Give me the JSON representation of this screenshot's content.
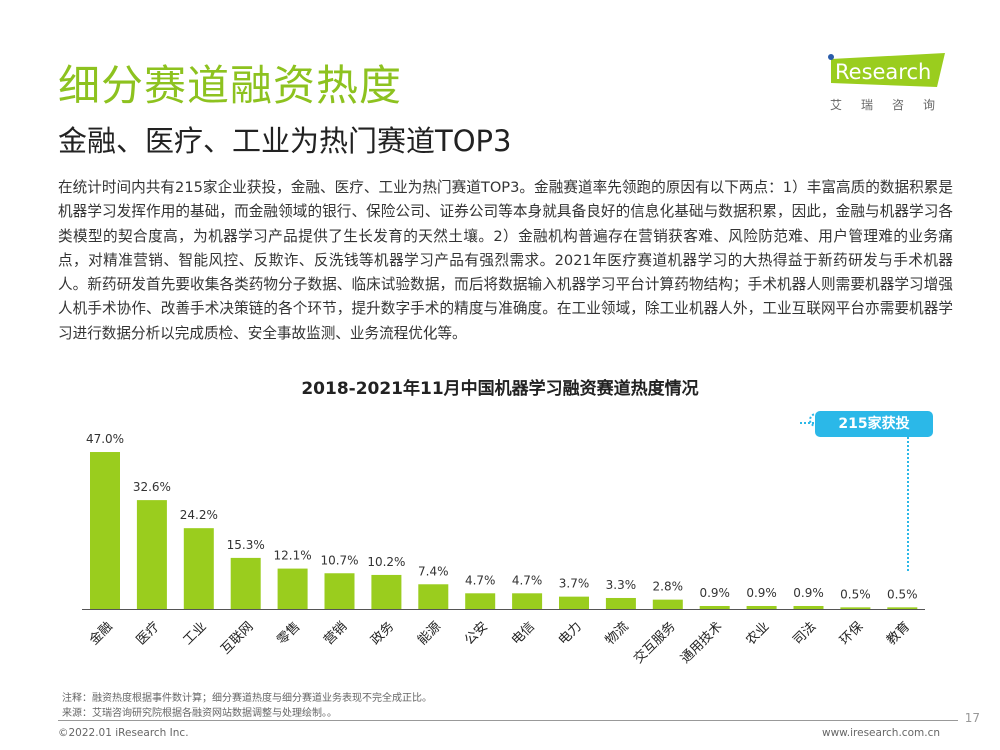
{
  "header": {
    "title": "细分赛道融资热度",
    "subtitle": "金融、医疗、工业为热门赛道TOP3"
  },
  "logo": {
    "brand": "iResearch",
    "cn": "艾瑞咨询",
    "brand_color": "#9acd1e"
  },
  "body_text": "在统计时间内共有215家企业获投，金融、医疗、工业为热门赛道TOP3。金融赛道率先领跑的原因有以下两点：1）丰富高质的数据积累是机器学习发挥作用的基础，而金融领域的银行、保险公司、证券公司等本身就具备良好的信息化基础与数据积累，因此，金融与机器学习各类模型的契合度高，为机器学习产品提供了生长发育的天然土壤。2）金融机构普遍存在营销获客难、风险防范难、用户管理难的业务痛点，对精准营销、智能风控、反欺诈、反洗钱等机器学习产品有强烈需求。2021年医疗赛道机器学习的大热得益于新药研发与手术机器人。新药研发首先要收集各类药物分子数据、临床试验数据，而后将数据输入机器学习平台计算药物结构；手术机器人则需要机器学习增强人机手术协作、改善手术决策链的各个环节，提升数字手术的精度与准确度。在工业领域，除工业机器人外，工业互联网平台亦需要机器学习进行数据分析以完成质检、安全事故监测、业务流程优化等。",
  "chart_data": {
    "type": "bar",
    "title": "2018-2021年11月中国机器学习融资赛道热度情况",
    "categories": [
      "金融",
      "医疗",
      "工业",
      "互联网",
      "零售",
      "营销",
      "政务",
      "能源",
      "公安",
      "电信",
      "电力",
      "物流",
      "交互服务",
      "通用技术",
      "农业",
      "司法",
      "环保",
      "教育"
    ],
    "values": [
      47.0,
      32.6,
      24.2,
      15.3,
      12.1,
      10.7,
      10.2,
      7.4,
      4.7,
      4.7,
      3.7,
      3.3,
      2.8,
      0.9,
      0.9,
      0.9,
      0.5,
      0.5
    ],
    "data_labels": [
      "47.0%",
      "32.6%",
      "24.2%",
      "15.3%",
      "12.1%",
      "10.7%",
      "10.2%",
      "7.4%",
      "4.7%",
      "4.7%",
      "3.7%",
      "3.3%",
      "2.8%",
      "0.9%",
      "0.9%",
      "0.9%",
      "0.5%",
      "0.5%"
    ],
    "annotation": "215家获投",
    "bar_color": "#9acd1e",
    "annotation_color": "#2bb8e8",
    "grid": false
  },
  "notes": {
    "note": "注释：融资热度根据事件数计算；细分赛道热度与细分赛道业务表现不完全成正比。",
    "source": "来源：艾瑞咨询研究院根据各融资网站数据调整与处理绘制。。"
  },
  "footer": {
    "copyright": "©2022.01 iResearch Inc.",
    "url": "www.iresearch.com.cn",
    "page": "17"
  }
}
